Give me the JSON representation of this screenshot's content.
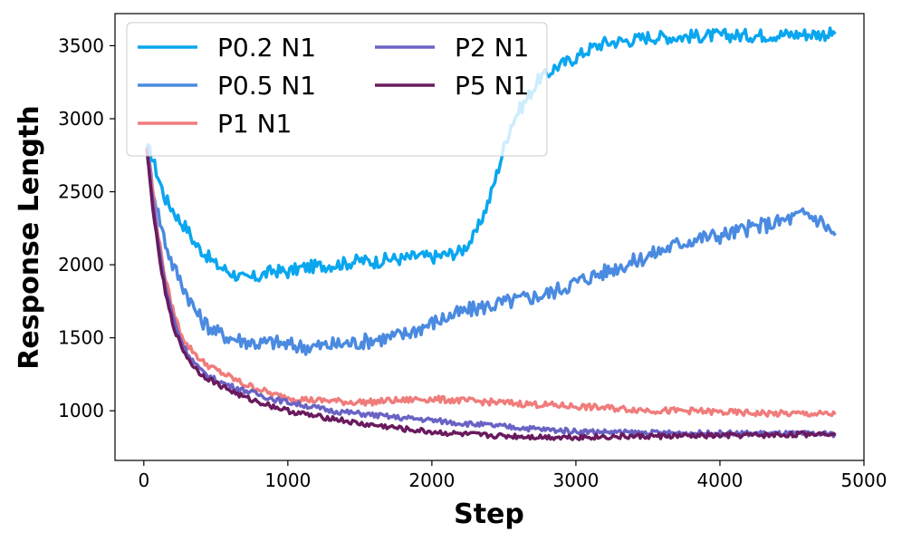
{
  "chart_data": {
    "type": "line",
    "title": "",
    "xlabel": "Step",
    "ylabel": "Response Length",
    "xlim": [
      -200,
      5000
    ],
    "ylim": [
      660,
      3720
    ],
    "xticks": [
      0,
      1000,
      2000,
      3000,
      4000,
      5000
    ],
    "yticks": [
      1000,
      1500,
      2000,
      2500,
      3000,
      3500
    ],
    "grid": false,
    "legend_position": "top-left",
    "legend_columns": 2,
    "series": [
      {
        "name": "P0.2 N1",
        "color": "#0aa6ef",
        "x": [
          20,
          50,
          100,
          150,
          200,
          250,
          300,
          350,
          400,
          500,
          600,
          700,
          800,
          900,
          1000,
          1100,
          1200,
          1300,
          1400,
          1500,
          1600,
          1700,
          1800,
          1900,
          2000,
          2100,
          2200,
          2300,
          2400,
          2450,
          2500,
          2550,
          2600,
          2650,
          2700,
          2750,
          2800,
          2850,
          2900,
          3000,
          3100,
          3200,
          3300,
          3400,
          3500,
          3600,
          3700,
          3800,
          4000,
          4200,
          4400,
          4600,
          4800
        ],
        "y": [
          2800,
          2760,
          2600,
          2450,
          2380,
          2300,
          2250,
          2150,
          2100,
          2000,
          1950,
          1900,
          1920,
          1960,
          1950,
          1980,
          1990,
          2000,
          2010,
          2030,
          2020,
          2040,
          2040,
          2060,
          2050,
          2070,
          2090,
          2200,
          2450,
          2620,
          2800,
          2960,
          3050,
          3120,
          3200,
          3280,
          3300,
          3350,
          3370,
          3420,
          3480,
          3520,
          3530,
          3540,
          3560,
          3560,
          3560,
          3565,
          3570,
          3570,
          3575,
          3580,
          3580
        ]
      },
      {
        "name": "P0.5 N1",
        "color": "#4a8ae0",
        "x": [
          20,
          50,
          100,
          150,
          200,
          250,
          300,
          350,
          400,
          500,
          600,
          700,
          800,
          900,
          1000,
          1100,
          1200,
          1300,
          1400,
          1500,
          1600,
          1700,
          1800,
          1900,
          2000,
          2100,
          2200,
          2300,
          2400,
          2500,
          2600,
          2700,
          2800,
          2900,
          3000,
          3100,
          3200,
          3300,
          3400,
          3500,
          3600,
          3700,
          3800,
          3900,
          4000,
          4100,
          4200,
          4300,
          4400,
          4500,
          4600,
          4700,
          4800
        ],
        "y": [
          2800,
          2600,
          2350,
          2150,
          2000,
          1900,
          1800,
          1700,
          1620,
          1540,
          1500,
          1480,
          1460,
          1470,
          1450,
          1440,
          1440,
          1450,
          1460,
          1470,
          1490,
          1500,
          1520,
          1560,
          1600,
          1640,
          1670,
          1700,
          1720,
          1740,
          1760,
          1780,
          1800,
          1840,
          1880,
          1920,
          1950,
          1990,
          2020,
          2060,
          2100,
          2140,
          2170,
          2190,
          2200,
          2220,
          2250,
          2270,
          2290,
          2320,
          2350,
          2300,
          2200
        ]
      },
      {
        "name": "P1 N1",
        "color": "#f07c7c",
        "x": [
          20,
          50,
          100,
          150,
          200,
          250,
          300,
          350,
          400,
          500,
          600,
          700,
          800,
          900,
          1000,
          1100,
          1200,
          1300,
          1400,
          1500,
          1600,
          1700,
          1800,
          1900,
          2000,
          2200,
          2400,
          2600,
          2800,
          3000,
          3200,
          3400,
          3600,
          3800,
          4000,
          4200,
          4400,
          4600,
          4800
        ],
        "y": [
          2800,
          2600,
          2200,
          1900,
          1700,
          1550,
          1450,
          1400,
          1340,
          1280,
          1230,
          1180,
          1150,
          1110,
          1090,
          1080,
          1070,
          1070,
          1060,
          1060,
          1060,
          1070,
          1070,
          1080,
          1080,
          1070,
          1060,
          1050,
          1040,
          1030,
          1020,
          1010,
          1000,
          1000,
          990,
          985,
          980,
          980,
          975
        ]
      },
      {
        "name": "P2 N1",
        "color": "#6a63c5",
        "x": [
          20,
          50,
          100,
          150,
          200,
          250,
          300,
          350,
          400,
          500,
          600,
          700,
          800,
          900,
          1000,
          1100,
          1200,
          1300,
          1400,
          1500,
          1600,
          1700,
          1800,
          1900,
          2000,
          2200,
          2400,
          2600,
          2800,
          3000,
          3200,
          3400,
          3600,
          3800,
          4000,
          4200,
          4400,
          4600,
          4800
        ],
        "y": [
          2800,
          2550,
          2150,
          1850,
          1650,
          1500,
          1400,
          1330,
          1270,
          1210,
          1170,
          1140,
          1110,
          1080,
          1060,
          1040,
          1020,
          1000,
          990,
          980,
          970,
          960,
          950,
          945,
          935,
          915,
          900,
          885,
          870,
          860,
          855,
          850,
          848,
          846,
          845,
          845,
          843,
          842,
          840
        ]
      },
      {
        "name": "P5 N1",
        "color": "#6a1a5e",
        "x": [
          20,
          50,
          100,
          150,
          200,
          250,
          300,
          350,
          400,
          500,
          600,
          700,
          800,
          900,
          1000,
          1100,
          1200,
          1300,
          1400,
          1500,
          1600,
          1700,
          1800,
          1900,
          2000,
          2200,
          2400,
          2600,
          2800,
          3000,
          3200,
          3400,
          3600,
          3800,
          4000,
          4200,
          4400,
          4600,
          4800
        ],
        "y": [
          2800,
          2500,
          2100,
          1800,
          1600,
          1460,
          1370,
          1300,
          1250,
          1190,
          1140,
          1090,
          1060,
          1030,
          1000,
          980,
          960,
          950,
          930,
          910,
          900,
          890,
          875,
          865,
          855,
          840,
          830,
          825,
          820,
          820,
          822,
          824,
          826,
          828,
          830,
          832,
          834,
          840,
          850
        ]
      }
    ]
  }
}
